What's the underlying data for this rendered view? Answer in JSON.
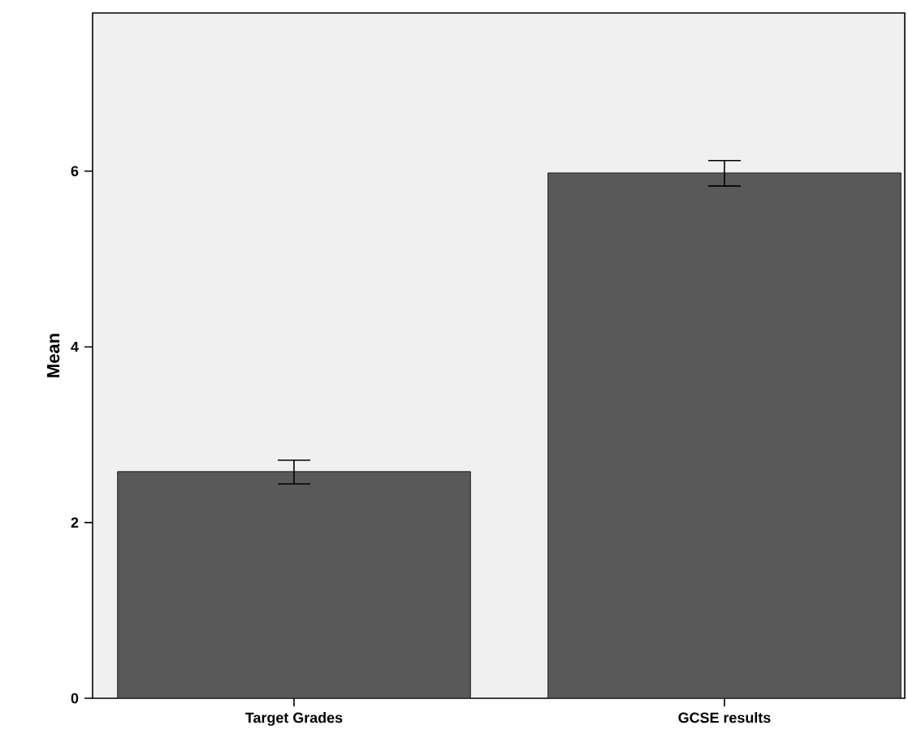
{
  "chart_data": {
    "type": "bar",
    "ylabel": "Mean",
    "categories": [
      "Target Grades",
      "GCSE results"
    ],
    "values": [
      2.58,
      5.98
    ],
    "errors": [
      [
        2.44,
        2.71
      ],
      [
        5.83,
        6.12
      ]
    ],
    "color": "#595959",
    "ylim": [
      0,
      7.8
    ],
    "yticks": [
      0,
      2,
      4,
      6
    ],
    "grid": false
  }
}
